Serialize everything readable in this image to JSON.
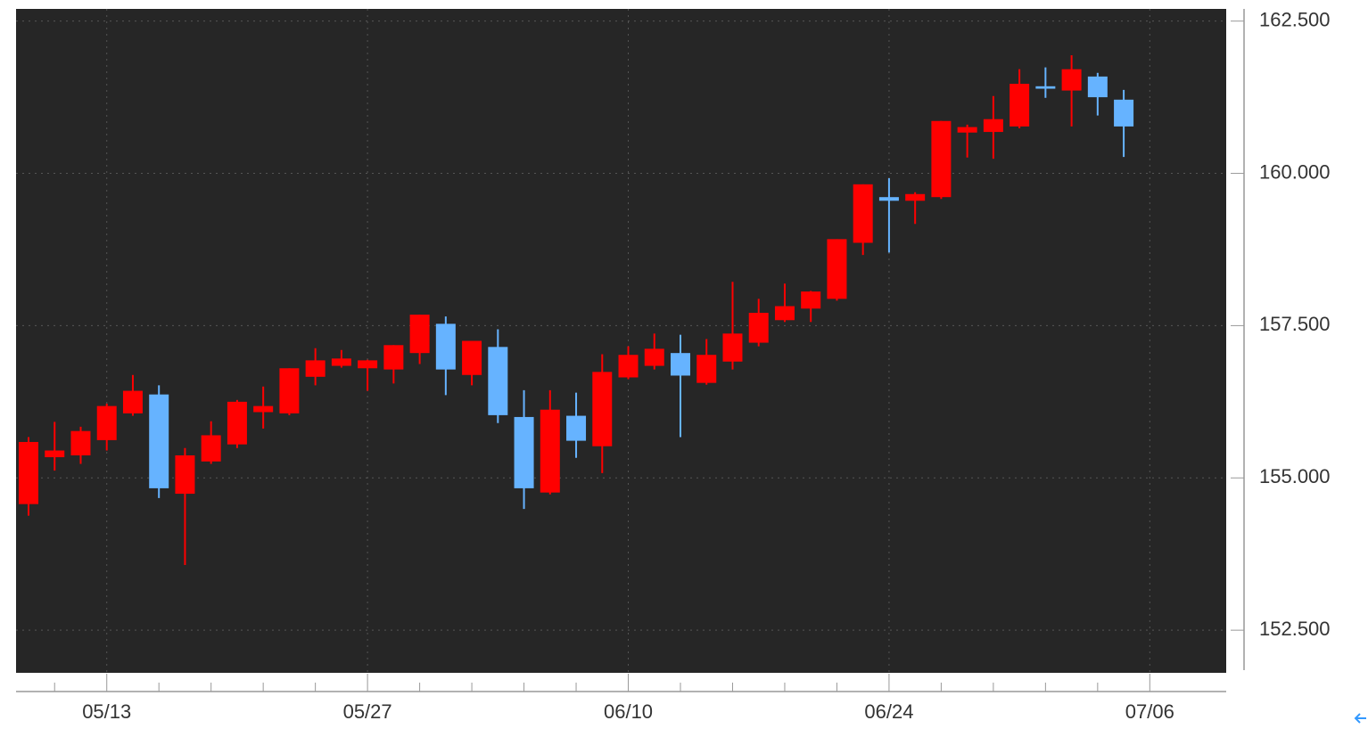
{
  "chart_data": {
    "type": "candlestick",
    "categories": [
      null,
      null,
      null,
      "05/13",
      null,
      null,
      null,
      null,
      null,
      null,
      null,
      null,
      null,
      "05/27",
      null,
      null,
      null,
      null,
      null,
      null,
      null,
      null,
      null,
      "06/10",
      null,
      null,
      null,
      null,
      null,
      null,
      null,
      null,
      null,
      "06/24",
      null,
      null,
      null,
      null,
      null,
      null,
      null,
      null,
      null,
      "07/06"
    ],
    "open": [
      154.57,
      155.34,
      155.37,
      155.62,
      156.06,
      156.37,
      154.74,
      155.27,
      155.55,
      156.08,
      156.06,
      156.66,
      156.84,
      156.8,
      156.78,
      157.05,
      157.53,
      156.69,
      157.15,
      156.0,
      154.76,
      156.02,
      155.52,
      156.65,
      156.84,
      157.05,
      156.56,
      156.91,
      157.22,
      157.59,
      157.78,
      157.94,
      158.86,
      159.61,
      159.55,
      159.61,
      160.67,
      160.68,
      160.77,
      161.43,
      161.36,
      161.59,
      161.21,
      null
    ],
    "high": [
      155.67,
      155.92,
      155.84,
      156.22,
      156.69,
      156.52,
      155.49,
      155.93,
      156.28,
      156.5,
      156.8,
      157.13,
      157.1,
      156.94,
      157.18,
      157.68,
      157.65,
      157.25,
      157.44,
      156.44,
      156.44,
      156.4,
      157.03,
      157.16,
      157.37,
      157.35,
      157.28,
      158.22,
      157.94,
      158.19,
      158.07,
      158.92,
      159.82,
      159.92,
      159.69,
      160.86,
      160.8,
      161.27,
      161.71,
      161.74,
      161.94,
      161.65,
      161.37,
      null
    ],
    "low": [
      154.38,
      155.12,
      155.23,
      155.45,
      156.02,
      154.67,
      153.57,
      155.23,
      155.49,
      155.81,
      156.03,
      156.52,
      156.81,
      156.43,
      156.55,
      156.87,
      156.36,
      156.52,
      155.9,
      154.49,
      154.73,
      155.33,
      155.08,
      156.62,
      156.78,
      155.67,
      156.53,
      156.78,
      157.16,
      157.56,
      157.56,
      157.91,
      158.66,
      158.7,
      159.17,
      159.58,
      160.26,
      160.24,
      160.74,
      161.24,
      160.77,
      160.95,
      160.27,
      null
    ],
    "close": [
      155.59,
      155.45,
      155.77,
      156.18,
      156.43,
      154.83,
      155.37,
      155.7,
      156.25,
      156.18,
      156.8,
      156.93,
      156.96,
      156.93,
      157.18,
      157.68,
      156.78,
      157.25,
      156.03,
      154.83,
      156.12,
      155.61,
      156.74,
      157.02,
      157.12,
      156.68,
      157.02,
      157.37,
      157.71,
      157.82,
      158.06,
      158.92,
      159.82,
      159.55,
      159.66,
      160.86,
      160.76,
      160.89,
      161.47,
      161.39,
      161.71,
      161.25,
      160.77,
      null
    ],
    "up_color": "#ff0000",
    "down_color": "#66b3ff",
    "ylim": [
      151.8,
      162.7
    ],
    "yticks": [
      {
        "value": 152.5,
        "label": "152.500"
      },
      {
        "value": 155,
        "label": "155.000"
      },
      {
        "value": 157.5,
        "label": "157.500"
      },
      {
        "value": 160,
        "label": "160.000"
      },
      {
        "value": 162.5,
        "label": "162.500"
      }
    ],
    "grid": true
  }
}
